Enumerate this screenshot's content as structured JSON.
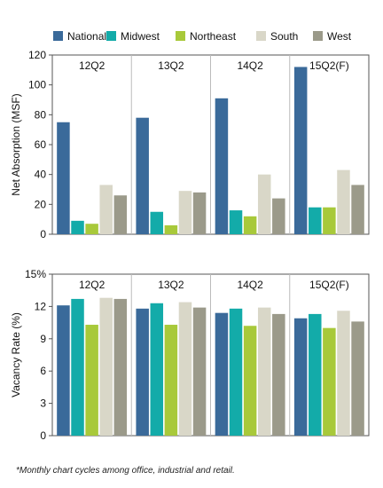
{
  "chart_data": [
    {
      "type": "bar",
      "title": "",
      "ylabel": "Net Absorption (MSF)",
      "ylim": [
        0,
        120
      ],
      "yticks": [
        0,
        20,
        40,
        60,
        80,
        100,
        120
      ],
      "categories": [
        "12Q2",
        "13Q2",
        "14Q2",
        "15Q2(F)"
      ],
      "series": [
        {
          "name": "National",
          "color": "#3a6a9a",
          "values": [
            75,
            78,
            91,
            112
          ]
        },
        {
          "name": "Midwest",
          "color": "#13aba9",
          "values": [
            9,
            15,
            16,
            18
          ]
        },
        {
          "name": "Northeast",
          "color": "#a8c93a",
          "values": [
            7,
            6,
            12,
            18
          ]
        },
        {
          "name": "South",
          "color": "#d9d7c8",
          "values": [
            33,
            29,
            40,
            43
          ]
        },
        {
          "name": "West",
          "color": "#9b9a8a",
          "values": [
            26,
            28,
            24,
            33
          ]
        }
      ],
      "grid": false,
      "legend": "top"
    },
    {
      "type": "bar",
      "title": "",
      "ylabel": "Vacancy Rate (%)",
      "ylim": [
        0,
        15
      ],
      "yticks": [
        "0",
        "3",
        "6",
        "9",
        "12",
        "15%"
      ],
      "categories": [
        "12Q2",
        "13Q2",
        "14Q2",
        "15Q2(F)"
      ],
      "series": [
        {
          "name": "National",
          "color": "#3a6a9a",
          "values": [
            12.1,
            11.8,
            11.4,
            10.9
          ]
        },
        {
          "name": "Midwest",
          "color": "#13aba9",
          "values": [
            12.7,
            12.3,
            11.8,
            11.3
          ]
        },
        {
          "name": "Northeast",
          "color": "#a8c93a",
          "values": [
            10.3,
            10.3,
            10.2,
            10.0
          ]
        },
        {
          "name": "South",
          "color": "#d9d7c8",
          "values": [
            12.8,
            12.4,
            11.9,
            11.6
          ]
        },
        {
          "name": "West",
          "color": "#9b9a8a",
          "values": [
            12.7,
            11.9,
            11.3,
            10.6
          ]
        }
      ],
      "grid": false,
      "legend": "top"
    }
  ],
  "footnote": "*Monthly chart cycles among office, industrial and retail."
}
